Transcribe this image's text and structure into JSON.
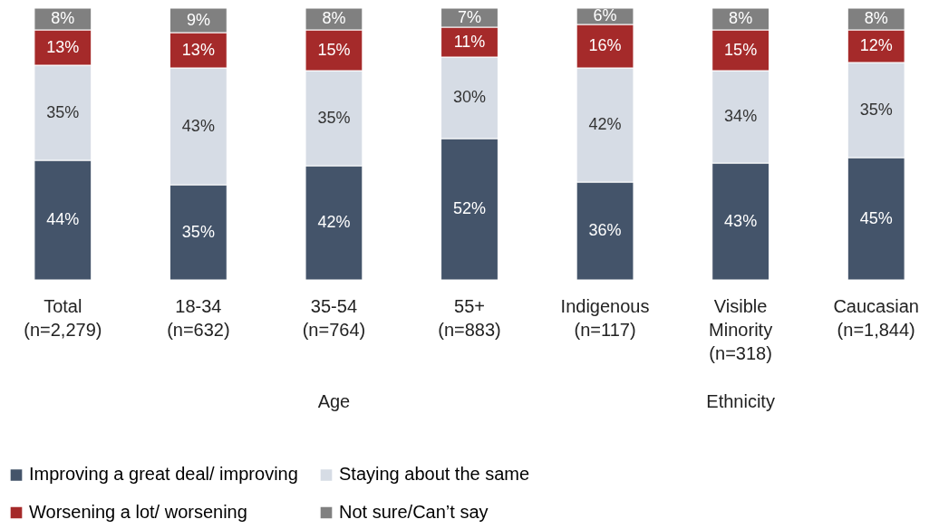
{
  "chart_data": {
    "type": "bar",
    "stacked": true,
    "legend": "bottom",
    "categories": [
      "Total\n(n=2,279)",
      "18-34\n(n=632)",
      "35-54\n(n=764)",
      "55+\n(n=883)",
      "Indigenous\n(n=117)",
      "Visible\nMinority\n(n=318)",
      "Caucasian\n(n=1,844)"
    ],
    "series": [
      {
        "name": "Improving a great deal/ improving",
        "color": "#44546a",
        "values": [
          44,
          35,
          42,
          52,
          36,
          43,
          45
        ],
        "value_labels": [
          "44%",
          "35%",
          "42%",
          "52%",
          "36%",
          "43%",
          "45%"
        ]
      },
      {
        "name": "Staying about the same",
        "color": "#d6dce5",
        "values": [
          35,
          43,
          35,
          30,
          42,
          34,
          35
        ],
        "value_labels": [
          "35%",
          "43%",
          "35%",
          "30%",
          "42%",
          "34%",
          "35%"
        ]
      },
      {
        "name": "Worsening a lot/ worsening",
        "color": "#a52a2a",
        "values": [
          13,
          13,
          15,
          11,
          16,
          15,
          12
        ],
        "value_labels": [
          "13%",
          "13%",
          "15%",
          "11%",
          "16%",
          "15%",
          "12%"
        ]
      },
      {
        "name": "Not sure/Can’t say",
        "color": "#808080",
        "values": [
          8,
          9,
          8,
          7,
          6,
          8,
          8
        ],
        "value_labels": [
          "8%",
          "9%",
          "8%",
          "7%",
          "6%",
          "8%",
          "8%"
        ]
      }
    ],
    "annotations": [
      "Age",
      "Ethnicity"
    ]
  }
}
